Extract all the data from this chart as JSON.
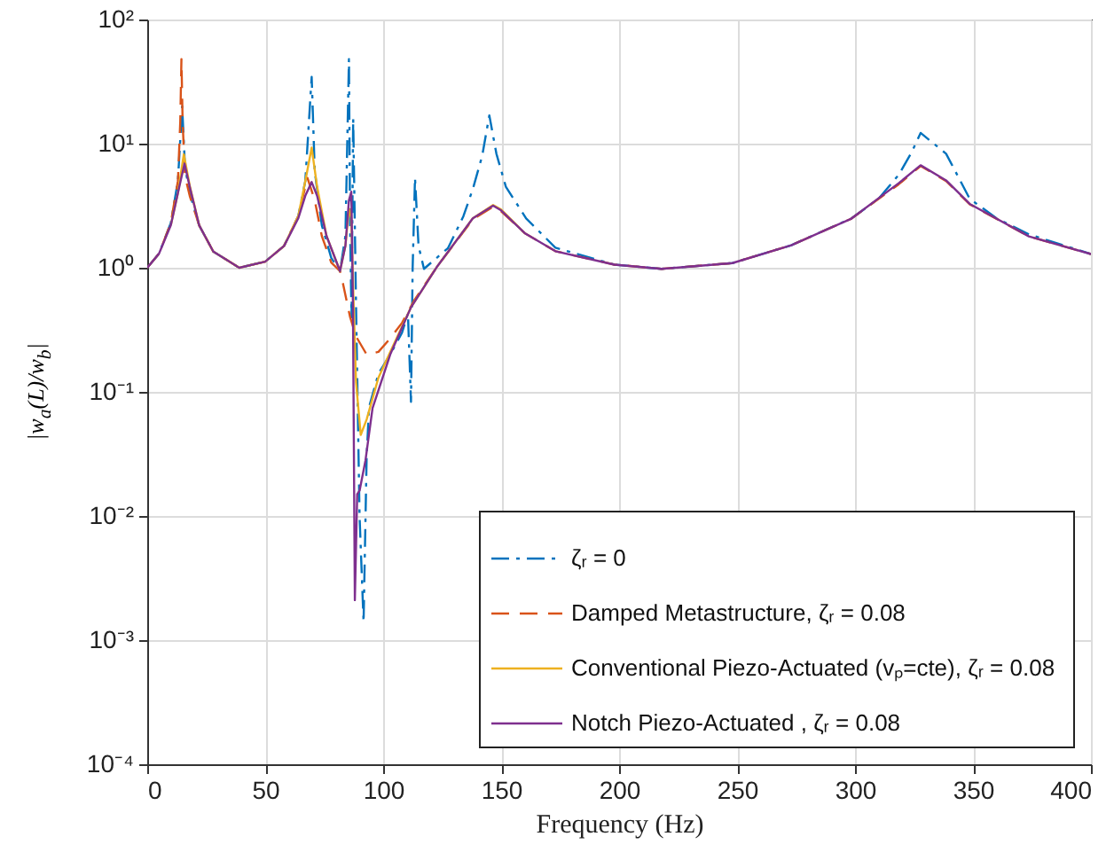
{
  "chart_data": {
    "type": "line",
    "xlabel": "Frequency (Hz)",
    "ylabel": "|w$_{a}$(L)/w$_{b}$|",
    "log": "y",
    "grid": true,
    "legend": "bottom right",
    "xlim": [
      0,
      400
    ],
    "xticks": [
      0,
      50,
      100,
      150,
      200,
      250,
      300,
      350,
      400
    ],
    "ylim": [
      0.0001,
      100
    ],
    "yticks": [
      {
        "value": 0.0001,
        "label": "10⁻⁴"
      },
      {
        "value": 0.001,
        "label": "10⁻³"
      },
      {
        "value": 0.01,
        "label": "10⁻²"
      },
      {
        "value": 0.1,
        "label": "10⁻¹"
      },
      {
        "value": 1,
        "label": "10⁰"
      },
      {
        "value": 10,
        "label": "10¹"
      },
      {
        "value": 100,
        "label": "10²"
      }
    ],
    "series": [
      {
        "name": "ζᵣ = 0",
        "color": "#0072bd",
        "line_style": "dashdot",
        "x": [
          0,
          5,
          10,
          13,
          14.8,
          16,
          18,
          22,
          28,
          39,
          50,
          58,
          64,
          67,
          69.7,
          71,
          74,
          78,
          81.7,
          84,
          85.5,
          86,
          86.6,
          87.3,
          88.5,
          90,
          91.7,
          93,
          94,
          98,
          103,
          108,
          110.5,
          111.8,
          112.5,
          113.5,
          115,
          117.3,
          127.5,
          134,
          138,
          142,
          145,
          148,
          152,
          160.6,
          173,
          198,
          218,
          248,
          273,
          298.5,
          310,
          318.5,
          324,
          327.8,
          332,
          338.6,
          348.6,
          360,
          373.7,
          400
        ],
        "values": [
          1,
          1.3,
          2.3,
          5,
          20,
          6.5,
          4,
          2.2,
          1.35,
          1,
          1.12,
          1.5,
          2.6,
          5,
          34.5,
          6,
          2.2,
          1.2,
          0.94,
          1.8,
          48,
          2,
          0.4,
          16,
          0.5,
          0.01,
          0.0014,
          0.03,
          0.075,
          0.14,
          0.2,
          0.3,
          0.43,
          0.083,
          1,
          5.3,
          1.5,
          0.98,
          1.44,
          2.6,
          4.3,
          8,
          16.9,
          8.3,
          4.5,
          2.5,
          1.45,
          1.06,
          0.98,
          1.09,
          1.52,
          2.5,
          3.6,
          5.6,
          8.5,
          12.2,
          10.5,
          8.3,
          3.6,
          2.5,
          1.86,
          1.29
        ]
      },
      {
        "name": "Damped Metastructure,  ζᵣ = 0.08",
        "color": "#d95319",
        "line_style": "dashed",
        "x": [
          0,
          5,
          10,
          13,
          14,
          14.5,
          15,
          16,
          18,
          22,
          28,
          39,
          50,
          58,
          64,
          67.9,
          71,
          74,
          78,
          81.7,
          83,
          86,
          88.5,
          93,
          98,
          103,
          108,
          113,
          123,
          138,
          146.6,
          150,
          160,
          173,
          198,
          218,
          248,
          273,
          298.5,
          318.5,
          327.8,
          338.6,
          348.6,
          373.7,
          400
        ],
        "values": [
          1,
          1.3,
          2.3,
          5,
          15,
          48,
          15,
          5.5,
          3.8,
          2.2,
          1.35,
          1,
          1.12,
          1.5,
          2.6,
          5.3,
          3.5,
          1.8,
          1.1,
          0.94,
          0.74,
          0.4,
          0.28,
          0.2,
          0.21,
          0.27,
          0.36,
          0.54,
          1.03,
          2.45,
          3.1,
          2.85,
          1.9,
          1.36,
          1.06,
          0.98,
          1.09,
          1.52,
          2.49,
          4.7,
          6.6,
          5,
          3.25,
          1.79,
          1.29
        ]
      },
      {
        "name": "Conventional Piezo-Actuated (vₚ=cte),  ζᵣ = 0.08",
        "color": "#edb120",
        "line_style": "solid",
        "x": [
          10,
          13,
          15.5,
          18,
          22,
          28,
          39,
          50,
          58,
          64,
          67,
          69.7,
          72,
          76,
          81.7,
          84,
          85.5,
          86.5,
          87.5,
          88.5,
          90.5,
          93,
          98,
          103,
          111.8,
          123,
          138,
          146.6,
          150,
          160
        ],
        "values": [
          2.2,
          4,
          8.2,
          4.6,
          2.2,
          1.35,
          1,
          1.12,
          1.5,
          2.6,
          5,
          9.3,
          4.5,
          1.8,
          0.94,
          1.5,
          3,
          2.5,
          0.5,
          0.12,
          0.045,
          0.06,
          0.13,
          0.21,
          0.48,
          1.03,
          2.5,
          3.2,
          2.95,
          1.9
        ]
      },
      {
        "name": "Notch Piezo-Actuated , ζᵣ = 0.08",
        "color": "#7e2f8e",
        "line_style": "solid",
        "x": [
          0,
          5,
          10,
          13,
          15.8,
          18,
          22,
          28,
          39,
          50,
          58,
          64,
          67,
          69.7,
          72,
          76,
          81.7,
          84,
          85.5,
          86.5,
          87.2,
          88,
          89,
          90,
          92.5,
          95.5,
          103,
          111.8,
          123,
          138,
          146.6,
          150,
          160,
          173,
          198,
          218,
          248,
          273,
          298.5,
          318.5,
          327.8,
          338.6,
          348.6,
          373.7,
          400
        ],
        "values": [
          1,
          1.3,
          2.2,
          4,
          6.9,
          4.5,
          2.2,
          1.35,
          1,
          1.12,
          1.5,
          2.5,
          3.8,
          4.9,
          3.8,
          1.8,
          0.94,
          1.5,
          3.5,
          4.1,
          0.5,
          0.0021,
          0.015,
          0.016,
          0.028,
          0.074,
          0.2,
          0.48,
          1.03,
          2.5,
          3.16,
          2.9,
          1.9,
          1.36,
          1.06,
          0.98,
          1.09,
          1.52,
          2.49,
          4.8,
          6.7,
          5.06,
          3.27,
          1.79,
          1.29
        ]
      }
    ]
  }
}
